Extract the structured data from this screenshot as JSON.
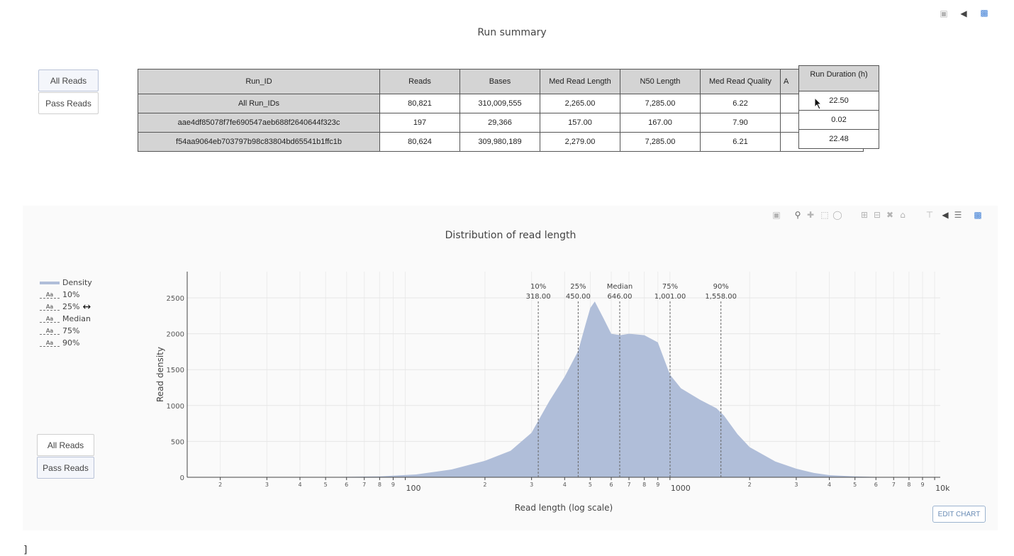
{
  "top": {
    "title": "Run summary",
    "buttons": [
      "All Reads",
      "Pass Reads"
    ]
  },
  "table": {
    "headers": [
      "Run_ID",
      "Reads",
      "Bases",
      "Med Read Length",
      "N50 Length",
      "Med Read Quality",
      "A"
    ],
    "rows": [
      [
        "All Run_IDs",
        "80,821",
        "310,009,555",
        "2,265.00",
        "7,285.00",
        "6.22",
        ""
      ],
      [
        "aae4df85078f7fe690547aeb688f2640644f323c",
        "197",
        "29,366",
        "157.00",
        "167.00",
        "7.90",
        ""
      ],
      [
        "f54aa9064eb703797b98c83804bd65541b1ffc1b",
        "80,624",
        "309,980,189",
        "2,279.00",
        "7,285.00",
        "6.21",
        ""
      ]
    ],
    "duration_header": "Run Duration (h)",
    "duration_values": [
      "22.50",
      "0.02",
      "22.48"
    ]
  },
  "chart_panel": {
    "title": "Distribution of read length",
    "buttons": [
      "All Reads",
      "Pass Reads"
    ],
    "edit_label": "EDIT CHART",
    "legend": [
      {
        "label": "Density",
        "marker": "line"
      },
      {
        "label": "10%",
        "marker": "Aa"
      },
      {
        "label": "25%",
        "marker": "Aa"
      },
      {
        "label": "Median",
        "marker": "Aa"
      },
      {
        "label": "75%",
        "marker": "Aa"
      },
      {
        "label": "90%",
        "marker": "Aa"
      }
    ]
  },
  "chart_data": {
    "type": "area",
    "title": "Distribution of read length",
    "xlabel": "Read length (log scale)",
    "ylabel": "Read density",
    "xscale": "log",
    "xlim": [
      15,
      10500
    ],
    "ylim": [
      0,
      2500
    ],
    "yticks": [
      0,
      500,
      1000,
      1500,
      2000,
      2500
    ],
    "xtick_major": [
      "100",
      "1000",
      "10k"
    ],
    "fill_color": "#b0bed9",
    "series": [
      {
        "name": "Density",
        "x": [
          15,
          50,
          80,
          110,
          150,
          200,
          250,
          300,
          350,
          400,
          450,
          480,
          500,
          520,
          560,
          600,
          650,
          700,
          800,
          900,
          1000,
          1100,
          1300,
          1500,
          1600,
          1800,
          2000,
          2500,
          3000,
          3500,
          4000,
          5000,
          6000,
          7000,
          10500
        ],
        "values": [
          0,
          2,
          12,
          40,
          110,
          230,
          370,
          620,
          1060,
          1400,
          1760,
          2130,
          2360,
          2450,
          2220,
          2000,
          1980,
          2000,
          1980,
          1880,
          1430,
          1240,
          1080,
          960,
          860,
          600,
          420,
          220,
          120,
          60,
          30,
          12,
          5,
          2,
          0
        ]
      }
    ],
    "annotations": [
      {
        "label": "10%",
        "value": 318.0,
        "text": "318.00"
      },
      {
        "label": "25%",
        "value": 450.0,
        "text": "450.00"
      },
      {
        "label": "Median",
        "value": 646.0,
        "text": "646.00"
      },
      {
        "label": "75%",
        "value": 1001.0,
        "text": "1,001.00"
      },
      {
        "label": "90%",
        "value": 1558.0,
        "text": "1,558.00"
      }
    ],
    "grid": true,
    "legend_position": "left"
  }
}
